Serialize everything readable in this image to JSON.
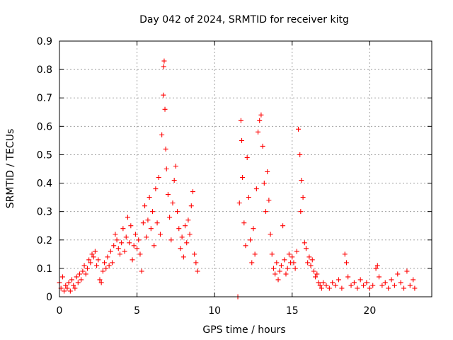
{
  "chart_data": {
    "type": "scatter",
    "title": "Day 042 of 2024, SRMTID for receiver kitg",
    "xlabel": "GPS time / hours",
    "ylabel": "SRMTID / TECUs",
    "xlim": [
      0,
      24
    ],
    "ylim": [
      0,
      0.9
    ],
    "x_ticks": [
      0,
      5,
      10,
      15,
      20
    ],
    "x_tick_labels": [
      "0",
      "5",
      "10",
      "15",
      "20"
    ],
    "y_ticks": [
      0,
      0.1,
      0.2,
      0.3,
      0.4,
      0.5,
      0.6,
      0.7,
      0.8,
      0.9
    ],
    "y_tick_labels": [
      "0",
      "0.1",
      "0.2",
      "0.3",
      "0.4",
      "0.5",
      "0.6",
      "0.7",
      "0.8",
      "0.9"
    ],
    "grid": true,
    "marker": "+",
    "color": "#ff0000",
    "series": [
      {
        "name": "SRMTID",
        "points": [
          [
            0.0,
            0.05
          ],
          [
            0.1,
            0.03
          ],
          [
            0.2,
            0.07
          ],
          [
            0.3,
            0.02
          ],
          [
            0.4,
            0.04
          ],
          [
            0.5,
            0.03
          ],
          [
            0.6,
            0.05
          ],
          [
            0.7,
            0.02
          ],
          [
            0.8,
            0.06
          ],
          [
            0.9,
            0.04
          ],
          [
            1.0,
            0.03
          ],
          [
            1.1,
            0.07
          ],
          [
            1.2,
            0.05
          ],
          [
            1.3,
            0.08
          ],
          [
            1.4,
            0.06
          ],
          [
            1.5,
            0.09
          ],
          [
            1.6,
            0.11
          ],
          [
            1.7,
            0.08
          ],
          [
            1.8,
            0.1
          ],
          [
            1.9,
            0.13
          ],
          [
            2.0,
            0.12
          ],
          [
            2.1,
            0.15
          ],
          [
            2.2,
            0.14
          ],
          [
            2.3,
            0.16
          ],
          [
            2.4,
            0.11
          ],
          [
            2.5,
            0.13
          ],
          [
            2.6,
            0.06
          ],
          [
            2.7,
            0.05
          ],
          [
            2.8,
            0.09
          ],
          [
            2.9,
            0.12
          ],
          [
            3.0,
            0.1
          ],
          [
            3.1,
            0.14
          ],
          [
            3.2,
            0.11
          ],
          [
            3.3,
            0.16
          ],
          [
            3.4,
            0.12
          ],
          [
            3.5,
            0.18
          ],
          [
            3.6,
            0.22
          ],
          [
            3.7,
            0.2
          ],
          [
            3.8,
            0.17
          ],
          [
            3.9,
            0.15
          ],
          [
            4.0,
            0.19
          ],
          [
            4.1,
            0.24
          ],
          [
            4.2,
            0.16
          ],
          [
            4.3,
            0.21
          ],
          [
            4.4,
            0.28
          ],
          [
            4.5,
            0.19
          ],
          [
            4.6,
            0.25
          ],
          [
            4.7,
            0.13
          ],
          [
            4.8,
            0.18
          ],
          [
            4.9,
            0.22
          ],
          [
            5.0,
            0.17
          ],
          [
            5.1,
            0.2
          ],
          [
            5.2,
            0.15
          ],
          [
            5.3,
            0.09
          ],
          [
            5.4,
            0.26
          ],
          [
            5.5,
            0.32
          ],
          [
            5.6,
            0.21
          ],
          [
            5.7,
            0.27
          ],
          [
            5.8,
            0.35
          ],
          [
            5.9,
            0.24
          ],
          [
            6.0,
            0.3
          ],
          [
            6.1,
            0.18
          ],
          [
            6.2,
            0.38
          ],
          [
            6.3,
            0.26
          ],
          [
            6.4,
            0.42
          ],
          [
            6.5,
            0.22
          ],
          [
            6.6,
            0.57
          ],
          [
            6.7,
            0.71
          ],
          [
            6.72,
            0.81
          ],
          [
            6.75,
            0.83
          ],
          [
            6.8,
            0.66
          ],
          [
            6.85,
            0.52
          ],
          [
            6.9,
            0.45
          ],
          [
            7.0,
            0.36
          ],
          [
            7.1,
            0.28
          ],
          [
            7.2,
            0.2
          ],
          [
            7.3,
            0.33
          ],
          [
            7.4,
            0.41
          ],
          [
            7.5,
            0.46
          ],
          [
            7.6,
            0.3
          ],
          [
            7.7,
            0.24
          ],
          [
            7.8,
            0.17
          ],
          [
            7.9,
            0.21
          ],
          [
            8.0,
            0.14
          ],
          [
            8.1,
            0.25
          ],
          [
            8.2,
            0.19
          ],
          [
            8.3,
            0.27
          ],
          [
            8.4,
            0.22
          ],
          [
            8.5,
            0.32
          ],
          [
            8.6,
            0.37
          ],
          [
            8.7,
            0.15
          ],
          [
            8.8,
            0.12
          ],
          [
            8.9,
            0.09
          ],
          [
            11.5,
            0.0
          ],
          [
            11.6,
            0.33
          ],
          [
            11.7,
            0.62
          ],
          [
            11.75,
            0.55
          ],
          [
            11.8,
            0.42
          ],
          [
            11.9,
            0.26
          ],
          [
            12.0,
            0.18
          ],
          [
            12.1,
            0.49
          ],
          [
            12.2,
            0.35
          ],
          [
            12.3,
            0.2
          ],
          [
            12.4,
            0.12
          ],
          [
            12.5,
            0.24
          ],
          [
            12.6,
            0.15
          ],
          [
            12.7,
            0.38
          ],
          [
            12.8,
            0.58
          ],
          [
            12.9,
            0.62
          ],
          [
            13.0,
            0.64
          ],
          [
            13.1,
            0.53
          ],
          [
            13.2,
            0.4
          ],
          [
            13.3,
            0.3
          ],
          [
            13.4,
            0.44
          ],
          [
            13.5,
            0.34
          ],
          [
            13.6,
            0.22
          ],
          [
            13.7,
            0.15
          ],
          [
            13.8,
            0.1
          ],
          [
            13.9,
            0.08
          ],
          [
            14.0,
            0.12
          ],
          [
            14.1,
            0.06
          ],
          [
            14.2,
            0.09
          ],
          [
            14.3,
            0.11
          ],
          [
            14.4,
            0.25
          ],
          [
            14.5,
            0.13
          ],
          [
            14.6,
            0.08
          ],
          [
            14.7,
            0.1
          ],
          [
            14.8,
            0.15
          ],
          [
            14.9,
            0.12
          ],
          [
            15.0,
            0.14
          ],
          [
            15.1,
            0.12
          ],
          [
            15.2,
            0.1
          ],
          [
            15.3,
            0.16
          ],
          [
            15.4,
            0.59
          ],
          [
            15.5,
            0.5
          ],
          [
            15.55,
            0.3
          ],
          [
            15.6,
            0.41
          ],
          [
            15.7,
            0.35
          ],
          [
            15.8,
            0.19
          ],
          [
            15.9,
            0.17
          ],
          [
            16.0,
            0.12
          ],
          [
            16.1,
            0.14
          ],
          [
            16.2,
            0.11
          ],
          [
            16.3,
            0.13
          ],
          [
            16.4,
            0.09
          ],
          [
            16.5,
            0.07
          ],
          [
            16.6,
            0.08
          ],
          [
            16.7,
            0.05
          ],
          [
            16.8,
            0.04
          ],
          [
            16.9,
            0.03
          ],
          [
            17.0,
            0.05
          ],
          [
            17.2,
            0.04
          ],
          [
            17.4,
            0.03
          ],
          [
            17.6,
            0.05
          ],
          [
            17.8,
            0.04
          ],
          [
            18.0,
            0.06
          ],
          [
            18.2,
            0.03
          ],
          [
            18.4,
            0.15
          ],
          [
            18.5,
            0.12
          ],
          [
            18.6,
            0.07
          ],
          [
            18.8,
            0.04
          ],
          [
            19.0,
            0.05
          ],
          [
            19.2,
            0.03
          ],
          [
            19.4,
            0.06
          ],
          [
            19.6,
            0.04
          ],
          [
            19.8,
            0.05
          ],
          [
            20.0,
            0.03
          ],
          [
            20.2,
            0.04
          ],
          [
            20.4,
            0.1
          ],
          [
            20.5,
            0.11
          ],
          [
            20.6,
            0.07
          ],
          [
            20.8,
            0.04
          ],
          [
            21.0,
            0.05
          ],
          [
            21.2,
            0.03
          ],
          [
            21.4,
            0.06
          ],
          [
            21.6,
            0.04
          ],
          [
            21.8,
            0.08
          ],
          [
            22.0,
            0.05
          ],
          [
            22.2,
            0.03
          ],
          [
            22.4,
            0.09
          ],
          [
            22.6,
            0.04
          ],
          [
            22.8,
            0.06
          ],
          [
            22.9,
            0.03
          ]
        ]
      }
    ]
  }
}
